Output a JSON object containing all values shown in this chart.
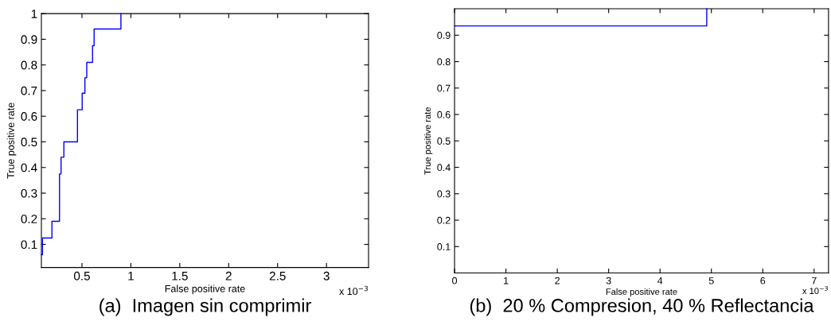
{
  "chart_data": [
    {
      "type": "step",
      "title": "(a)  Imagen sin comprimir",
      "xlabel": "False positive rate",
      "ylabel": "True positive rate",
      "annotations": [
        "x 10$^{−3}$"
      ],
      "series": [
        {
          "color": "#0000ff",
          "x": [
            0.085,
            0.096,
            0.193,
            0.27,
            0.286,
            0.315,
            0.454,
            0.502,
            0.53,
            0.549,
            0.608,
            0.624,
            0.898
          ],
          "values": [
            0.06,
            0.125,
            0.19,
            0.375,
            0.44,
            0.5,
            0.625,
            0.69,
            0.75,
            0.81,
            0.875,
            0.94,
            1
          ]
        }
      ],
      "xlim": [
        0.085,
        3.43
      ],
      "xticks": [
        0.5,
        1,
        1.5,
        2,
        2.5,
        3
      ],
      "ylim": [
        0.01,
        1
      ],
      "yticks": [
        0.1,
        0.2,
        0.3,
        0.4,
        0.5,
        0.6,
        0.7,
        0.8,
        0.9,
        1
      ],
      "grid": false,
      "legend": false
    },
    {
      "type": "step",
      "title": "(b)  20 % Compresion, 40 % Reflectancia",
      "xlabel": "False positive rate",
      "ylabel": "True positive rate",
      "annotations": [
        "x 10$^{−3}$"
      ],
      "series": [
        {
          "color": "#0000ff",
          "x": [
            0,
            4.91
          ],
          "values": [
            0.935,
            1
          ]
        }
      ],
      "xlim": [
        0,
        7.28
      ],
      "xticks": [
        0,
        1,
        2,
        3,
        4,
        5,
        6,
        7
      ],
      "ylim": [
        0,
        1
      ],
      "yticks": [
        0.1,
        0.2,
        0.3,
        0.4,
        0.5,
        0.6,
        0.7,
        0.8,
        0.9
      ],
      "grid": false,
      "legend": false
    }
  ]
}
